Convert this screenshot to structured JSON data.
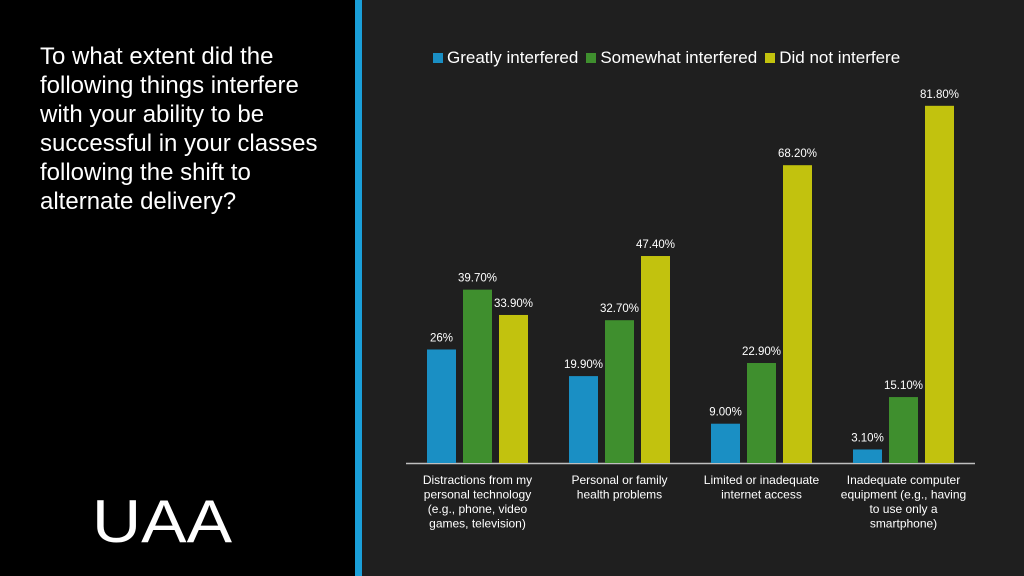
{
  "question": "To what extent did the following things interfere with your ability to be successful in your classes following the shift to alternate delivery?",
  "logo_text": "UAA",
  "colors": {
    "accent": "#1a9fd9",
    "background": "#000000",
    "panel": "#1f1f1f"
  },
  "chart_data": {
    "type": "bar",
    "categories": [
      [
        "Distractions from my",
        "personal technology",
        "(e.g., phone, video",
        "games, television)"
      ],
      [
        "Personal or family",
        "health problems"
      ],
      [
        "Limited or inadequate",
        "internet access"
      ],
      [
        "Inadequate computer",
        "equipment (e.g., having",
        "to use only a",
        "smartphone)"
      ]
    ],
    "series": [
      {
        "name": "Greatly interfered",
        "color": "#1a8fc4",
        "values": [
          26,
          19.9,
          9.0,
          3.1
        ],
        "labels": [
          "26%",
          "19.90%",
          "9.00%",
          "3.10%"
        ]
      },
      {
        "name": "Somewhat interfered",
        "color": "#3f8f2e",
        "values": [
          39.7,
          32.7,
          22.9,
          15.1
        ],
        "labels": [
          "39.70%",
          "32.70%",
          "22.90%",
          "15.10%"
        ]
      },
      {
        "name": "Did not interfere",
        "color": "#c2c20e",
        "values": [
          33.9,
          47.4,
          68.2,
          81.8
        ],
        "labels": [
          "33.90%",
          "47.40%",
          "68.20%",
          "81.80%"
        ]
      }
    ],
    "ylim": [
      0,
      90
    ],
    "legend_position": "top",
    "grid": false
  }
}
